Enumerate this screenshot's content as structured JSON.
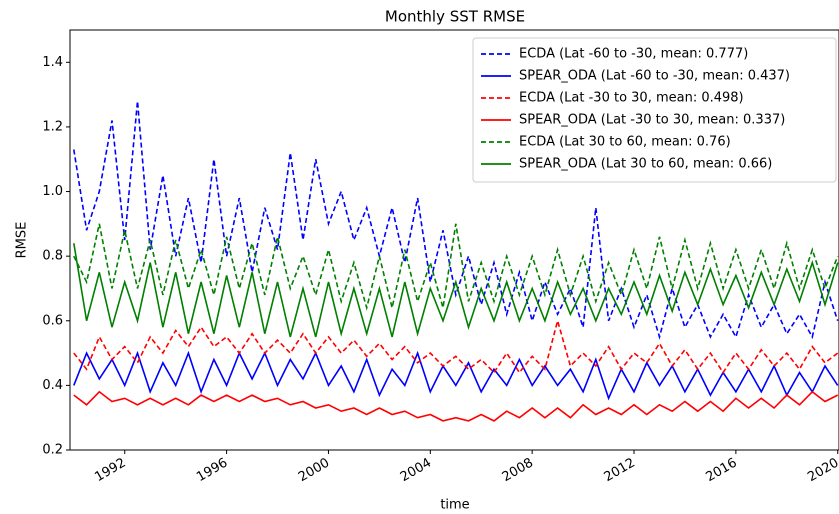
{
  "chart_data": {
    "type": "line",
    "title": "Monthly SST RMSE",
    "xlabel": "time",
    "ylabel": "RMSE",
    "x": [
      1990,
      1990.5,
      1991,
      1991.5,
      1992,
      1992.5,
      1993,
      1993.5,
      1994,
      1994.5,
      1995,
      1995.5,
      1996,
      1996.5,
      1997,
      1997.5,
      1998,
      1998.5,
      1999,
      1999.5,
      2000,
      2000.5,
      2001,
      2001.5,
      2002,
      2002.5,
      2003,
      2003.5,
      2004,
      2004.5,
      2005,
      2005.5,
      2006,
      2006.5,
      2007,
      2007.5,
      2008,
      2008.5,
      2009,
      2009.5,
      2010,
      2010.5,
      2011,
      2011.5,
      2012,
      2012.5,
      2013,
      2013.5,
      2014,
      2014.5,
      2015,
      2015.5,
      2016,
      2016.5,
      2017,
      2017.5,
      2018,
      2018.5,
      2019,
      2019.5,
      2020
    ],
    "series": [
      {
        "name": "ECDA (Lat -60 to -30, mean: 0.777)",
        "color": "#0000ff",
        "linestyle": "dashed",
        "values": [
          1.13,
          0.88,
          1.0,
          1.22,
          0.85,
          1.28,
          0.82,
          1.05,
          0.8,
          0.98,
          0.78,
          1.1,
          0.8,
          0.98,
          0.75,
          0.95,
          0.82,
          1.12,
          0.85,
          1.1,
          0.9,
          1.0,
          0.85,
          0.95,
          0.8,
          0.95,
          0.78,
          0.98,
          0.72,
          0.88,
          0.68,
          0.8,
          0.65,
          0.78,
          0.62,
          0.75,
          0.6,
          0.72,
          0.62,
          0.7,
          0.58,
          0.95,
          0.6,
          0.7,
          0.58,
          0.68,
          0.55,
          0.7,
          0.58,
          0.65,
          0.55,
          0.62,
          0.55,
          0.68,
          0.58,
          0.65,
          0.56,
          0.62,
          0.55,
          0.72,
          0.6
        ]
      },
      {
        "name": "SPEAR_ODA (Lat -60 to -30, mean: 0.437)",
        "color": "#0000ff",
        "linestyle": "solid",
        "values": [
          0.4,
          0.5,
          0.42,
          0.48,
          0.4,
          0.5,
          0.38,
          0.47,
          0.4,
          0.5,
          0.38,
          0.48,
          0.4,
          0.5,
          0.42,
          0.5,
          0.4,
          0.48,
          0.42,
          0.5,
          0.4,
          0.46,
          0.38,
          0.48,
          0.37,
          0.45,
          0.4,
          0.5,
          0.38,
          0.46,
          0.4,
          0.47,
          0.38,
          0.45,
          0.4,
          0.48,
          0.4,
          0.46,
          0.4,
          0.45,
          0.38,
          0.48,
          0.36,
          0.45,
          0.38,
          0.47,
          0.4,
          0.46,
          0.38,
          0.45,
          0.37,
          0.44,
          0.38,
          0.45,
          0.38,
          0.46,
          0.37,
          0.44,
          0.38,
          0.46,
          0.4
        ]
      },
      {
        "name": "ECDA (Lat -30 to 30, mean: 0.498)",
        "color": "#ff0000",
        "linestyle": "dashed",
        "values": [
          0.5,
          0.45,
          0.55,
          0.48,
          0.52,
          0.47,
          0.55,
          0.5,
          0.57,
          0.52,
          0.58,
          0.52,
          0.55,
          0.5,
          0.56,
          0.5,
          0.54,
          0.5,
          0.56,
          0.5,
          0.55,
          0.5,
          0.54,
          0.49,
          0.53,
          0.48,
          0.52,
          0.47,
          0.5,
          0.46,
          0.49,
          0.45,
          0.48,
          0.44,
          0.5,
          0.44,
          0.49,
          0.45,
          0.6,
          0.46,
          0.5,
          0.46,
          0.52,
          0.45,
          0.5,
          0.47,
          0.53,
          0.46,
          0.51,
          0.45,
          0.5,
          0.44,
          0.5,
          0.45,
          0.51,
          0.46,
          0.5,
          0.45,
          0.52,
          0.47,
          0.5
        ]
      },
      {
        "name": "SPEAR_ODA (Lat -30 to 30, mean: 0.337)",
        "color": "#ff0000",
        "linestyle": "solid",
        "values": [
          0.37,
          0.34,
          0.38,
          0.35,
          0.36,
          0.34,
          0.36,
          0.34,
          0.36,
          0.34,
          0.37,
          0.35,
          0.37,
          0.35,
          0.37,
          0.35,
          0.36,
          0.34,
          0.35,
          0.33,
          0.34,
          0.32,
          0.33,
          0.31,
          0.33,
          0.31,
          0.32,
          0.3,
          0.31,
          0.29,
          0.3,
          0.29,
          0.31,
          0.29,
          0.32,
          0.3,
          0.33,
          0.3,
          0.33,
          0.3,
          0.34,
          0.31,
          0.33,
          0.31,
          0.34,
          0.31,
          0.34,
          0.32,
          0.35,
          0.32,
          0.35,
          0.32,
          0.36,
          0.33,
          0.36,
          0.33,
          0.37,
          0.34,
          0.38,
          0.35,
          0.37
        ]
      },
      {
        "name": "ECDA (Lat 30 to 60, mean: 0.76)",
        "color": "#008000",
        "linestyle": "dashed",
        "values": [
          0.8,
          0.72,
          0.9,
          0.7,
          0.88,
          0.7,
          0.85,
          0.68,
          0.85,
          0.7,
          0.82,
          0.68,
          0.86,
          0.7,
          0.84,
          0.68,
          0.86,
          0.7,
          0.8,
          0.68,
          0.82,
          0.66,
          0.78,
          0.64,
          0.8,
          0.64,
          0.82,
          0.66,
          0.78,
          0.64,
          0.9,
          0.66,
          0.78,
          0.66,
          0.8,
          0.68,
          0.8,
          0.68,
          0.82,
          0.68,
          0.8,
          0.66,
          0.78,
          0.68,
          0.82,
          0.7,
          0.86,
          0.7,
          0.85,
          0.7,
          0.84,
          0.7,
          0.82,
          0.7,
          0.82,
          0.7,
          0.84,
          0.7,
          0.82,
          0.7,
          0.8
        ]
      },
      {
        "name": "SPEAR_ODA (Lat 30 to 60, mean: 0.66)",
        "color": "#008000",
        "linestyle": "solid",
        "values": [
          0.84,
          0.6,
          0.75,
          0.58,
          0.72,
          0.6,
          0.78,
          0.58,
          0.75,
          0.56,
          0.72,
          0.56,
          0.74,
          0.58,
          0.75,
          0.56,
          0.72,
          0.55,
          0.7,
          0.55,
          0.72,
          0.56,
          0.7,
          0.56,
          0.7,
          0.55,
          0.72,
          0.56,
          0.7,
          0.6,
          0.72,
          0.58,
          0.7,
          0.6,
          0.72,
          0.6,
          0.7,
          0.6,
          0.72,
          0.62,
          0.7,
          0.6,
          0.7,
          0.62,
          0.72,
          0.62,
          0.74,
          0.63,
          0.75,
          0.65,
          0.76,
          0.65,
          0.74,
          0.64,
          0.75,
          0.65,
          0.76,
          0.66,
          0.78,
          0.65,
          0.78
        ]
      }
    ],
    "xlim": [
      1989.85,
      2020.05
    ],
    "xticks": [
      1992,
      1996,
      2000,
      2004,
      2008,
      2012,
      2016,
      2020
    ],
    "ylim": [
      0.2,
      1.5
    ],
    "yticks": [
      {
        "value": 0.2,
        "label": "0.2"
      },
      {
        "value": 0.4,
        "label": "0.4"
      },
      {
        "value": 0.6,
        "label": "0.6"
      },
      {
        "value": 0.8,
        "label": "0.8"
      },
      {
        "value": 1.0,
        "label": "1.0"
      },
      {
        "value": 1.2,
        "label": "1.2"
      },
      {
        "value": 1.4,
        "label": "1.4"
      }
    ],
    "legend": "upper right",
    "grid": false
  }
}
